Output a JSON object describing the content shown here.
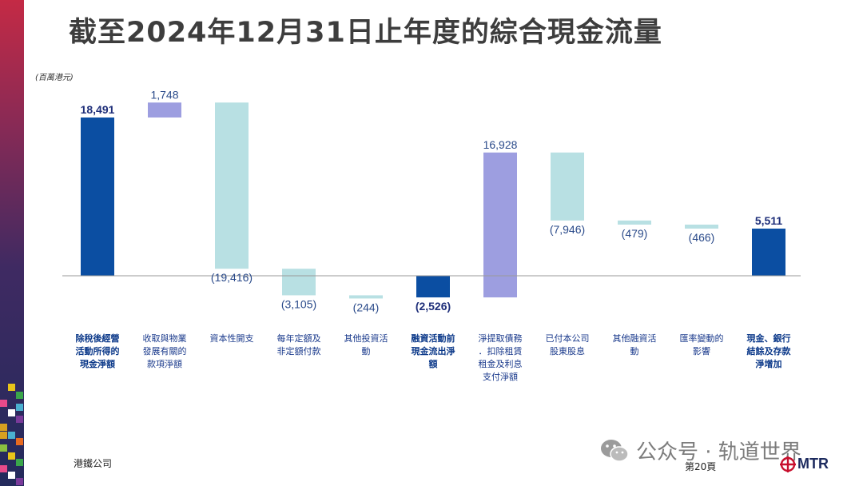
{
  "title": "截至2024年12月31日止年度的綜合現金流量",
  "unit_note": "(百萬港元)",
  "footer": {
    "company": "港鐵公司",
    "page": "第20頁"
  },
  "watermark": {
    "text": "公众号 · 轨道世界",
    "icon": "wechat-icon"
  },
  "logo": {
    "text": "MTR",
    "icon": "mtr-logo-icon"
  },
  "colors": {
    "dark_blue": "#0b4ea2",
    "light_cyan": "#b8e0e3",
    "lavender": "#9d9ee0",
    "label_blue": "#1a3a8c"
  },
  "chart_data": {
    "type": "bar",
    "subtype": "waterfall",
    "unit": "(百萬港元)",
    "ylim": [
      -5000,
      20000
    ],
    "grid": false,
    "legend": "none",
    "categories": [
      "除稅後經營活動所得的現金淨額",
      "收取與物業發展有關的款項淨額",
      "資本性開支",
      "每年定額及非定額付款",
      "其他投資活動",
      "融資活動前現金流出淨額",
      "淨提取債務．扣除租賃租金及利息支付淨額",
      "已付本公司股東股息",
      "其他融資活動",
      "匯率變動的影響",
      "現金、銀行結餘及存款淨增加"
    ],
    "category_lines": [
      [
        "除稅後經營",
        "活動所得的",
        "現金淨額"
      ],
      [
        "收取與物業",
        "發展有關的",
        "款項淨額"
      ],
      [
        "資本性開支"
      ],
      [
        "每年定額及",
        "非定額付款"
      ],
      [
        "其他投資活",
        "動"
      ],
      [
        "融資活動前",
        "現金流出淨",
        "額"
      ],
      [
        "淨提取債務",
        "．扣除租賃",
        "租金及利息",
        "支付淨額"
      ],
      [
        "已付本公司",
        "股東股息"
      ],
      [
        "其他融資活",
        "動"
      ],
      [
        "匯率變動的",
        "影響"
      ],
      [
        "現金、銀行",
        "結餘及存款",
        "淨增加"
      ]
    ],
    "bold_categories": [
      0,
      5,
      10
    ],
    "values": [
      18491,
      1748,
      -19416,
      -3105,
      -244,
      -2526,
      16928,
      -7946,
      -479,
      -466,
      5511
    ],
    "value_labels": [
      "18,491",
      "1,748",
      "(19,416)",
      "(3,105)",
      "(244)",
      "(2,526)",
      "16,928",
      "(7,946)",
      "(479)",
      "(466)",
      "5,511"
    ],
    "bar_kind": [
      "total",
      "increase",
      "decrease",
      "decrease",
      "decrease",
      "total",
      "increase",
      "decrease",
      "decrease",
      "decrease",
      "total"
    ]
  }
}
